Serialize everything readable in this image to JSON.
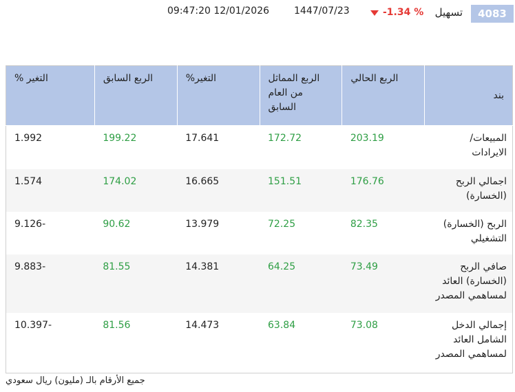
{
  "header": {
    "code": "4083",
    "company": "تسهيل",
    "change": "-1.34 %",
    "hijri_date": "1447/07/23",
    "datetime": "09:47:20 12/01/2026"
  },
  "table": {
    "headers": {
      "item": "بند",
      "current_q": "الربع الحالي",
      "same_q_last_year": "الربع المماثل من العام السابق",
      "change_pct_1": "التغير%",
      "prev_q": "الربع السابق",
      "change_pct_2": "التغير %"
    },
    "rows": [
      {
        "item": "المبيعات/ الايرادات",
        "current_q": "203.19",
        "same_q_last_year": "172.72",
        "change_pct_1": "17.641",
        "prev_q": "199.22",
        "change_pct_2": "1.992"
      },
      {
        "item": "اجمالي الربح (الخسارة)",
        "current_q": "176.76",
        "same_q_last_year": "151.51",
        "change_pct_1": "16.665",
        "prev_q": "174.02",
        "change_pct_2": "1.574"
      },
      {
        "item": "الربح (الخسارة) التشغيلي",
        "current_q": "82.35",
        "same_q_last_year": "72.25",
        "change_pct_1": "13.979",
        "prev_q": "90.62",
        "change_pct_2": "-9.126"
      },
      {
        "item": "صافي الربح (الخسارة) العائد لمساهمي المصدر",
        "current_q": "73.49",
        "same_q_last_year": "64.25",
        "change_pct_1": "14.381",
        "prev_q": "81.55",
        "change_pct_2": "-9.883"
      },
      {
        "item": "إجمالي الدخل الشامل العائد لمساهمي المصدر",
        "current_q": "73.08",
        "same_q_last_year": "63.84",
        "change_pct_1": "14.473",
        "prev_q": "81.56",
        "change_pct_2": "-10.397"
      }
    ]
  },
  "footnote": "جميع الأرقام بالـ (مليون) ريال سعودي",
  "colors": {
    "header_bg": "#b4c6e7",
    "positive": "#2e9e44",
    "negative": "#e53935"
  },
  "icons": {
    "change_direction": "triangle-down-icon"
  }
}
